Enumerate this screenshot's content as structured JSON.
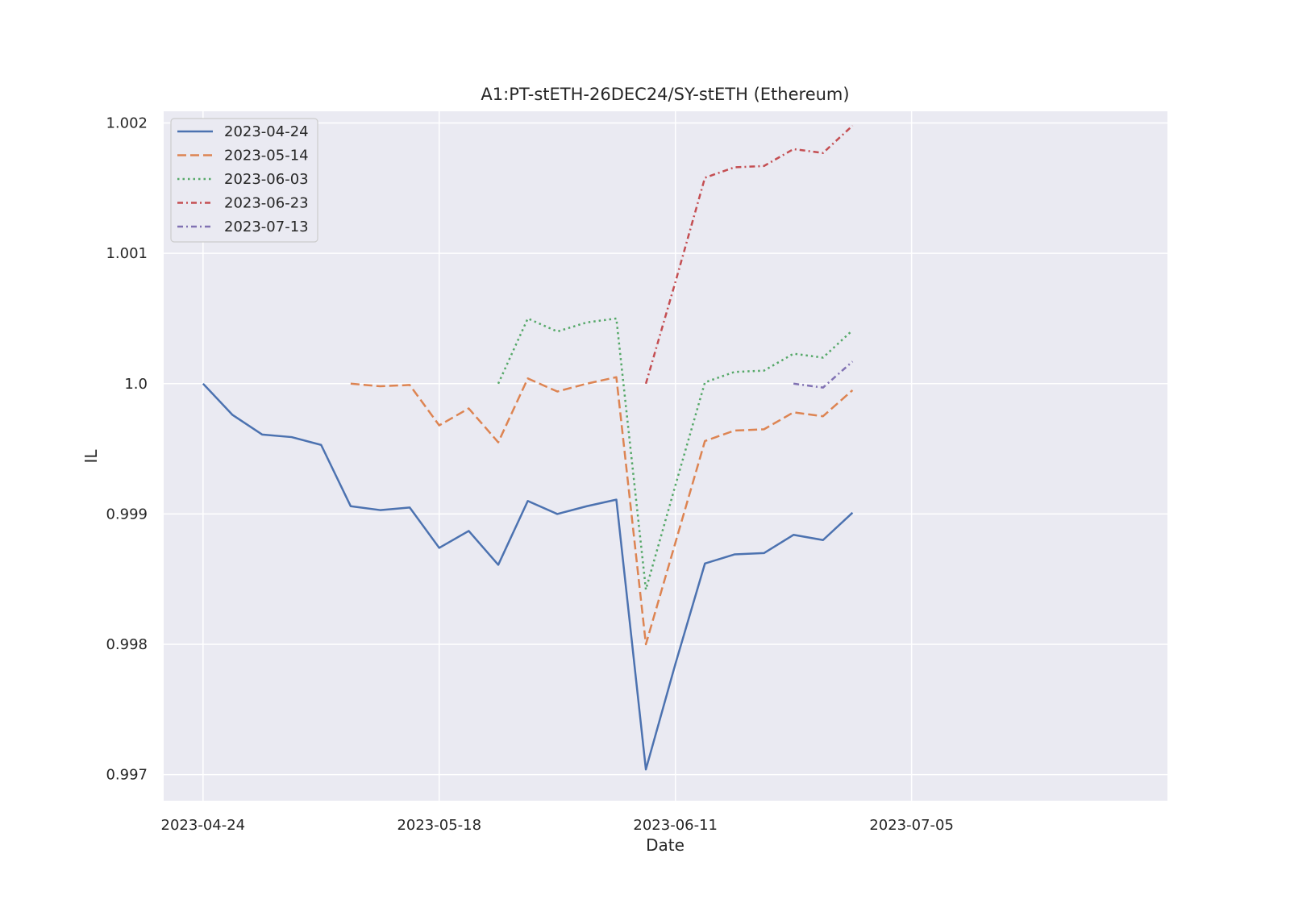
{
  "chart_data": {
    "type": "line",
    "title": "A1:PT-stETH-26DEC24/SY-stETH (Ethereum)",
    "xlabel": "Date",
    "ylabel": "IL",
    "x_start": "2023-04-24",
    "x_step_days": 3,
    "xlim": [
      "2023-04-20",
      "2023-07-31"
    ],
    "ylim": [
      0.9968,
      1.00209
    ],
    "x_ticks": [
      "2023-04-24",
      "2023-05-18",
      "2023-06-11",
      "2023-07-05"
    ],
    "y_ticks": [
      0.997,
      0.998,
      0.999,
      1.0,
      1.001,
      1.002
    ],
    "y_tick_labels": [
      "0.997",
      "0.998",
      "0.999",
      "1.0",
      "1.001",
      "1.002"
    ],
    "grid": true,
    "legend_position": "top-left",
    "background": "#eaeaf2",
    "series": [
      {
        "name": "2023-04-24",
        "color": "#4c72b0",
        "dash": "solid",
        "start_index": 0,
        "values": [
          1.0,
          0.99976,
          0.99961,
          0.99959,
          0.99953,
          0.99906,
          0.99903,
          0.99905,
          0.99874,
          0.99887,
          0.99861,
          0.9991,
          0.999,
          0.99906,
          0.99911,
          0.99704,
          0.99785,
          0.99862,
          0.99869,
          0.9987,
          0.99884,
          0.9988,
          0.99901
        ]
      },
      {
        "name": "2023-05-14",
        "color": "#dd8452",
        "dash": "dashed",
        "start_index": 5,
        "values": [
          1.0,
          0.99998,
          0.99999,
          0.99968,
          0.99981,
          0.99955,
          1.00004,
          0.99994,
          1.0,
          1.00005,
          0.998,
          0.99878,
          0.99956,
          0.99964,
          0.99965,
          0.99978,
          0.99975,
          0.99995
        ]
      },
      {
        "name": "2023-06-03",
        "color": "#55a868",
        "dash": "dotted",
        "start_index": 10,
        "values": [
          1.0,
          1.0005,
          1.0004,
          1.00047,
          1.0005,
          0.99842,
          0.99922,
          1.00001,
          1.00009,
          1.0001,
          1.00023,
          1.0002,
          1.00041
        ]
      },
      {
        "name": "2023-06-23",
        "color": "#c44e52",
        "dash": "dashdot",
        "start_index": 15,
        "values": [
          1.0,
          1.00078,
          1.00158,
          1.00166,
          1.00167,
          1.0018,
          1.00177,
          1.00198
        ]
      },
      {
        "name": "2023-07-13",
        "color": "#8172b3",
        "dash": "dashdot",
        "start_index": 20,
        "values": [
          1.0,
          0.99997,
          1.00017
        ]
      }
    ]
  }
}
